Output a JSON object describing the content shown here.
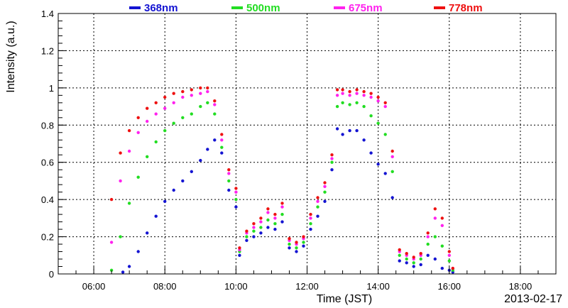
{
  "chart_data": {
    "type": "scatter",
    "title": "",
    "xlabel": "Time (JST)",
    "ylabel": "Intensity (a.u.)",
    "date_label": "2013-02-17",
    "x_unit": "hour (JST)",
    "xlim": [
      5.0,
      19.0
    ],
    "ylim": [
      0,
      1.4
    ],
    "x_ticks": [
      6,
      8,
      10,
      12,
      14,
      16,
      18
    ],
    "x_tick_labels": [
      "06:00",
      "08:00",
      "10:00",
      "12:00",
      "14:00",
      "16:00",
      "18:00"
    ],
    "y_ticks": [
      0,
      0.2,
      0.4,
      0.6,
      0.8,
      1,
      1.2,
      1.4
    ],
    "y_tick_labels": [
      "0",
      "0.2",
      "0.4",
      "0.6",
      "0.8",
      "1",
      "1.2",
      "1.4"
    ],
    "grid": true,
    "legend_position": "top",
    "series": [
      {
        "name": "368nm",
        "color": "#1414d2",
        "x": [
          6.82,
          7.0,
          7.25,
          7.5,
          7.75,
          8.0,
          8.25,
          8.5,
          8.75,
          9.0,
          9.2,
          9.4,
          9.6,
          9.8,
          10.0,
          10.1,
          10.3,
          10.5,
          10.7,
          10.9,
          11.1,
          11.3,
          11.5,
          11.7,
          11.9,
          12.1,
          12.3,
          12.5,
          12.7,
          12.85,
          13.0,
          13.2,
          13.4,
          13.6,
          13.8,
          14.0,
          14.2,
          14.4,
          14.6,
          14.8,
          15.0,
          15.2,
          15.4,
          15.6,
          15.8,
          16.0,
          16.1
        ],
        "values": [
          0.01,
          0.04,
          0.12,
          0.22,
          0.31,
          0.39,
          0.45,
          0.5,
          0.55,
          0.61,
          0.67,
          0.72,
          0.65,
          0.45,
          0.36,
          0.1,
          0.18,
          0.2,
          0.22,
          0.25,
          0.24,
          0.28,
          0.14,
          0.12,
          0.15,
          0.24,
          0.31,
          0.39,
          0.56,
          0.78,
          0.75,
          0.77,
          0.77,
          0.72,
          0.65,
          0.59,
          0.54,
          0.41,
          0.07,
          0.06,
          0.04,
          0.05,
          0.1,
          0.08,
          0.03,
          0.02,
          0.01
        ]
      },
      {
        "name": "500nm",
        "color": "#22dd22",
        "x": [
          6.5,
          6.75,
          7.0,
          7.25,
          7.5,
          7.75,
          8.0,
          8.25,
          8.5,
          8.75,
          9.0,
          9.2,
          9.4,
          9.6,
          9.8,
          10.0,
          10.1,
          10.3,
          10.5,
          10.7,
          10.9,
          11.1,
          11.3,
          11.5,
          11.7,
          11.9,
          12.1,
          12.3,
          12.5,
          12.7,
          12.85,
          13.0,
          13.2,
          13.4,
          13.6,
          13.8,
          14.0,
          14.2,
          14.4,
          14.6,
          14.8,
          15.0,
          15.2,
          15.4,
          15.6,
          15.8,
          16.0,
          16.1
        ],
        "values": [
          0.02,
          0.2,
          0.38,
          0.52,
          0.63,
          0.71,
          0.77,
          0.81,
          0.84,
          0.86,
          0.9,
          0.92,
          0.86,
          0.68,
          0.5,
          0.4,
          0.12,
          0.2,
          0.23,
          0.25,
          0.29,
          0.27,
          0.32,
          0.16,
          0.14,
          0.17,
          0.27,
          0.36,
          0.44,
          0.6,
          0.9,
          0.92,
          0.91,
          0.92,
          0.9,
          0.85,
          0.81,
          0.75,
          0.55,
          0.1,
          0.08,
          0.06,
          0.08,
          0.16,
          0.2,
          0.15,
          0.07,
          0.02
        ]
      },
      {
        "name": "675nm",
        "color": "#ff22ee",
        "x": [
          6.5,
          6.75,
          7.0,
          7.25,
          7.5,
          7.75,
          8.0,
          8.25,
          8.5,
          8.75,
          9.0,
          9.2,
          9.4,
          9.6,
          9.8,
          10.0,
          10.1,
          10.3,
          10.5,
          10.7,
          10.9,
          11.1,
          11.3,
          11.5,
          11.7,
          11.9,
          12.1,
          12.3,
          12.5,
          12.7,
          12.85,
          13.0,
          13.2,
          13.4,
          13.6,
          13.8,
          14.0,
          14.2,
          14.4,
          14.6,
          14.8,
          15.0,
          15.2,
          15.4,
          15.6,
          15.8,
          16.0,
          16.1
        ],
        "values": [
          0.17,
          0.5,
          0.66,
          0.76,
          0.82,
          0.86,
          0.89,
          0.92,
          0.95,
          0.96,
          0.97,
          0.98,
          0.91,
          0.72,
          0.54,
          0.44,
          0.13,
          0.22,
          0.25,
          0.28,
          0.33,
          0.3,
          0.36,
          0.18,
          0.16,
          0.19,
          0.3,
          0.39,
          0.47,
          0.62,
          0.96,
          0.97,
          0.96,
          0.97,
          0.96,
          0.95,
          0.93,
          0.9,
          0.63,
          0.12,
          0.1,
          0.08,
          0.1,
          0.2,
          0.3,
          0.26,
          0.1,
          0.03
        ]
      },
      {
        "name": "778nm",
        "color": "#ee1111",
        "x": [
          6.5,
          6.75,
          7.0,
          7.25,
          7.5,
          7.75,
          8.0,
          8.25,
          8.5,
          8.75,
          9.0,
          9.2,
          9.4,
          9.6,
          9.8,
          10.0,
          10.1,
          10.3,
          10.5,
          10.7,
          10.9,
          11.1,
          11.3,
          11.5,
          11.7,
          11.9,
          12.1,
          12.3,
          12.5,
          12.7,
          12.85,
          13.0,
          13.2,
          13.4,
          13.6,
          13.8,
          14.0,
          14.2,
          14.4,
          14.6,
          14.8,
          15.0,
          15.2,
          15.4,
          15.6,
          15.8,
          16.0,
          16.1
        ],
        "values": [
          0.4,
          0.65,
          0.77,
          0.84,
          0.89,
          0.92,
          0.95,
          0.97,
          0.98,
          0.99,
          1.0,
          1.0,
          0.93,
          0.75,
          0.56,
          0.46,
          0.14,
          0.23,
          0.27,
          0.3,
          0.35,
          0.32,
          0.38,
          0.19,
          0.17,
          0.2,
          0.32,
          0.41,
          0.49,
          0.64,
          0.99,
          0.99,
          0.98,
          0.99,
          0.98,
          0.97,
          0.95,
          0.92,
          0.66,
          0.13,
          0.11,
          0.09,
          0.11,
          0.22,
          0.35,
          0.3,
          0.12,
          0.03
        ]
      }
    ]
  }
}
